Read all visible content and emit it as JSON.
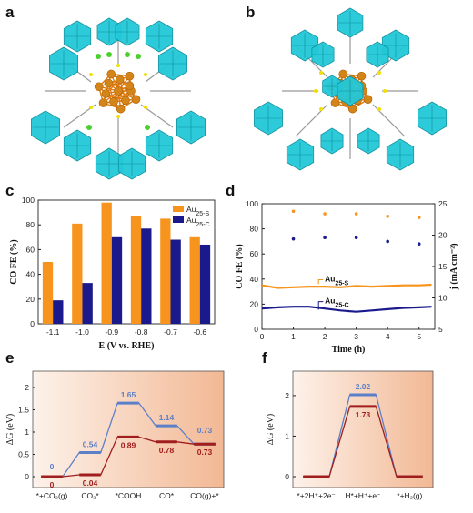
{
  "panels": {
    "a": "a",
    "b": "b",
    "c": "c",
    "d": "d",
    "e": "e",
    "f": "f"
  },
  "colors": {
    "orange": "#f7941d",
    "navy": "#1a1a8c",
    "blue_line": "#5b7fc8",
    "red_line": "#a01e1e",
    "gold": "#d4851a",
    "cyan": "#22c8d8"
  },
  "icons": {
    "a": "au25-s-cluster-structure",
    "b": "au25-c-cluster-structure"
  },
  "watermark": "",
  "chart_data": [
    {
      "id": "c",
      "type": "bar",
      "categories": [
        "-1.1",
        "-1.0",
        "-0.9",
        "-0.8",
        "-0.7",
        "-0.6"
      ],
      "series": [
        {
          "name": "Au25-S",
          "values": [
            50,
            81,
            98,
            87,
            85,
            70
          ]
        },
        {
          "name": "Au25-C",
          "values": [
            19,
            33,
            70,
            77,
            68,
            64
          ]
        }
      ],
      "xlabel": "E (V vs. RHE)",
      "ylabel": "CO FE (%)",
      "ylim": [
        0,
        100
      ],
      "yticks": [
        "0",
        "20",
        "40",
        "60",
        "80",
        "100"
      ],
      "legend": "top-right"
    },
    {
      "id": "d",
      "type": "scatter",
      "xlabel": "Time (h)",
      "ylabel_left": "CO FE (%)",
      "ylabel_right": "j (mA cm⁻²)",
      "xlim": [
        0,
        5.5
      ],
      "ylim_left": [
        0,
        100
      ],
      "ylim_right": [
        5,
        25
      ],
      "xticks": [
        "0",
        "1",
        "2",
        "3",
        "4",
        "5"
      ],
      "yticks_left": [
        "0",
        "20",
        "40",
        "60",
        "80",
        "100"
      ],
      "yticks_right": [
        "5",
        "10",
        "15",
        "20",
        "25"
      ],
      "fe_series": [
        {
          "name": "Au25-S",
          "x": [
            1,
            2,
            3,
            4,
            5
          ],
          "y": [
            94,
            92,
            92,
            90,
            89
          ]
        },
        {
          "name": "Au25-C",
          "x": [
            1,
            2,
            3,
            4,
            5
          ],
          "y": [
            72,
            73,
            73,
            70,
            68
          ]
        }
      ],
      "j_series": [
        {
          "name": "Au25-S",
          "x": [
            0,
            0.5,
            1,
            1.5,
            2,
            2.5,
            3,
            3.5,
            4,
            4.5,
            5,
            5.4
          ],
          "y": [
            12.0,
            11.6,
            11.7,
            11.8,
            11.8,
            11.7,
            11.9,
            11.8,
            11.9,
            12.0,
            12.0,
            12.1
          ]
        },
        {
          "name": "Au25-C",
          "x": [
            0,
            0.5,
            1,
            1.5,
            2,
            2.5,
            3,
            3.5,
            4,
            4.5,
            5,
            5.4
          ],
          "y": [
            8.3,
            8.5,
            8.6,
            8.6,
            8.3,
            8.0,
            7.8,
            8.0,
            8.2,
            8.4,
            8.5,
            8.6
          ]
        }
      ],
      "labels": {
        "s": "Au25-S",
        "c": "Au25-C"
      }
    },
    {
      "id": "e",
      "type": "line",
      "ylabel": "ΔG (eV)",
      "ylim": [
        0,
        2
      ],
      "yticks": [
        "0",
        "0.5",
        "1",
        "1.5",
        "2"
      ],
      "categories": [
        "*+CO₂(g)",
        "CO₂*",
        "*COOH",
        "CO*",
        "CO(g)+*"
      ],
      "series": [
        {
          "name": "Au25-C",
          "values": [
            0,
            0.54,
            1.65,
            1.14,
            0.73
          ],
          "labels": [
            "0",
            "0.54",
            "1.65",
            "1.14",
            "0.73"
          ]
        },
        {
          "name": "Au25-S",
          "values": [
            0,
            0.04,
            0.89,
            0.78,
            0.73
          ],
          "labels": [
            "0",
            "0.04",
            "0.89",
            "0.78",
            "0.73"
          ]
        }
      ]
    },
    {
      "id": "f",
      "type": "line",
      "ylabel": "ΔG (eV)",
      "ylim": [
        0,
        2.2
      ],
      "yticks": [
        "0",
        "1",
        "2"
      ],
      "categories": [
        "*+2H⁺+2e⁻",
        "H*+H⁺+e⁻",
        "*+H₂(g)"
      ],
      "series": [
        {
          "name": "Au25-C",
          "values": [
            0,
            2.02,
            0
          ],
          "labels": [
            "",
            "2.02",
            ""
          ]
        },
        {
          "name": "Au25-S",
          "values": [
            0,
            1.73,
            0
          ],
          "labels": [
            "",
            "1.73",
            ""
          ]
        }
      ]
    }
  ]
}
